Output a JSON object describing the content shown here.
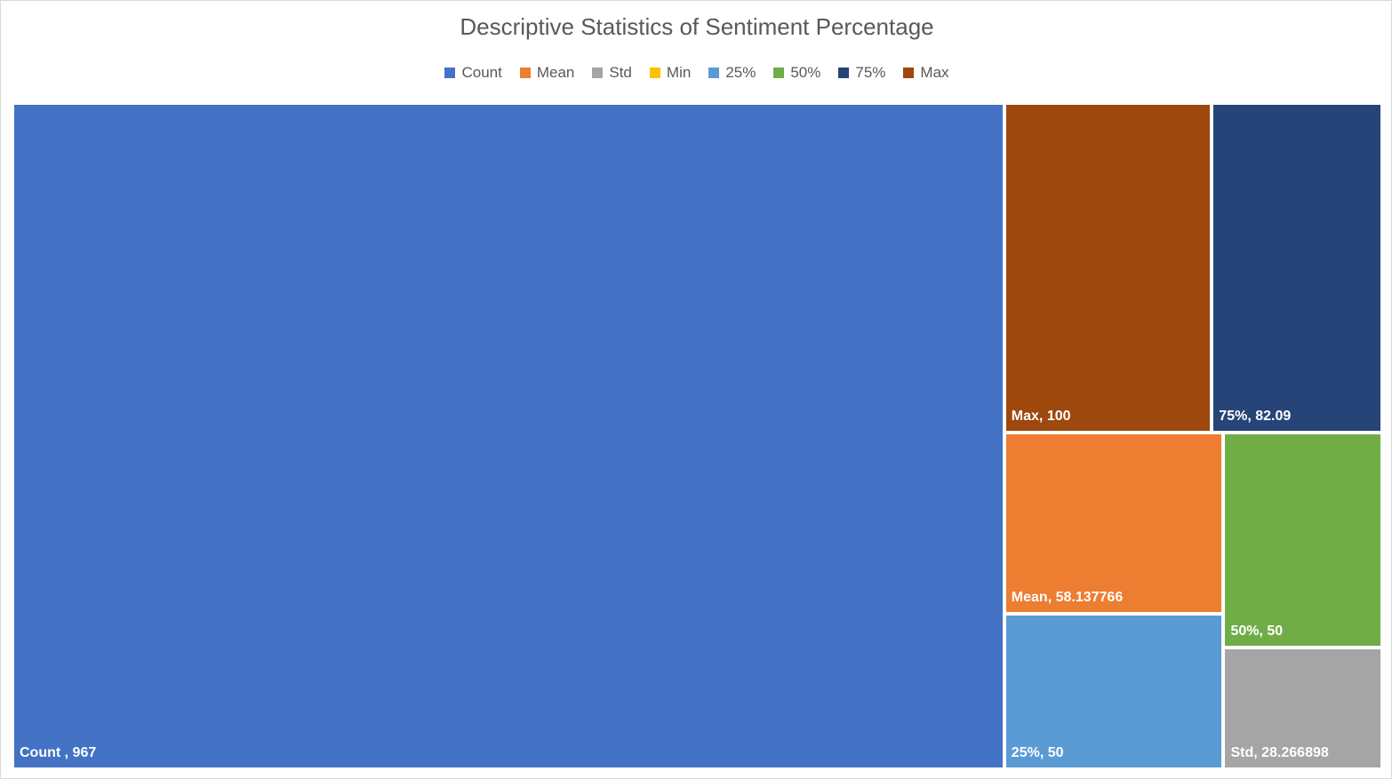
{
  "chart_data": {
    "type": "treemap",
    "title": "Descriptive Statistics of Sentiment Percentage",
    "legend_position": "top",
    "categories": [
      "Count",
      "Mean",
      "Std",
      "Min",
      "25%",
      "50%",
      "75%",
      "Max"
    ],
    "colors": [
      "#4472C4",
      "#ED7D31",
      "#A5A5A5",
      "#FFC000",
      "#5B9BD5",
      "#70AD47",
      "#264478",
      "#9E480E"
    ],
    "values": [
      967,
      58.137766,
      28.266898,
      0,
      50,
      50,
      82.09,
      100
    ],
    "labels": [
      "Count  , 967",
      "Mean, 58.137766",
      "Std, 28.266898",
      "",
      "25%, 50",
      "50%, 50",
      "75%, 82.09",
      "Max, 100"
    ]
  }
}
